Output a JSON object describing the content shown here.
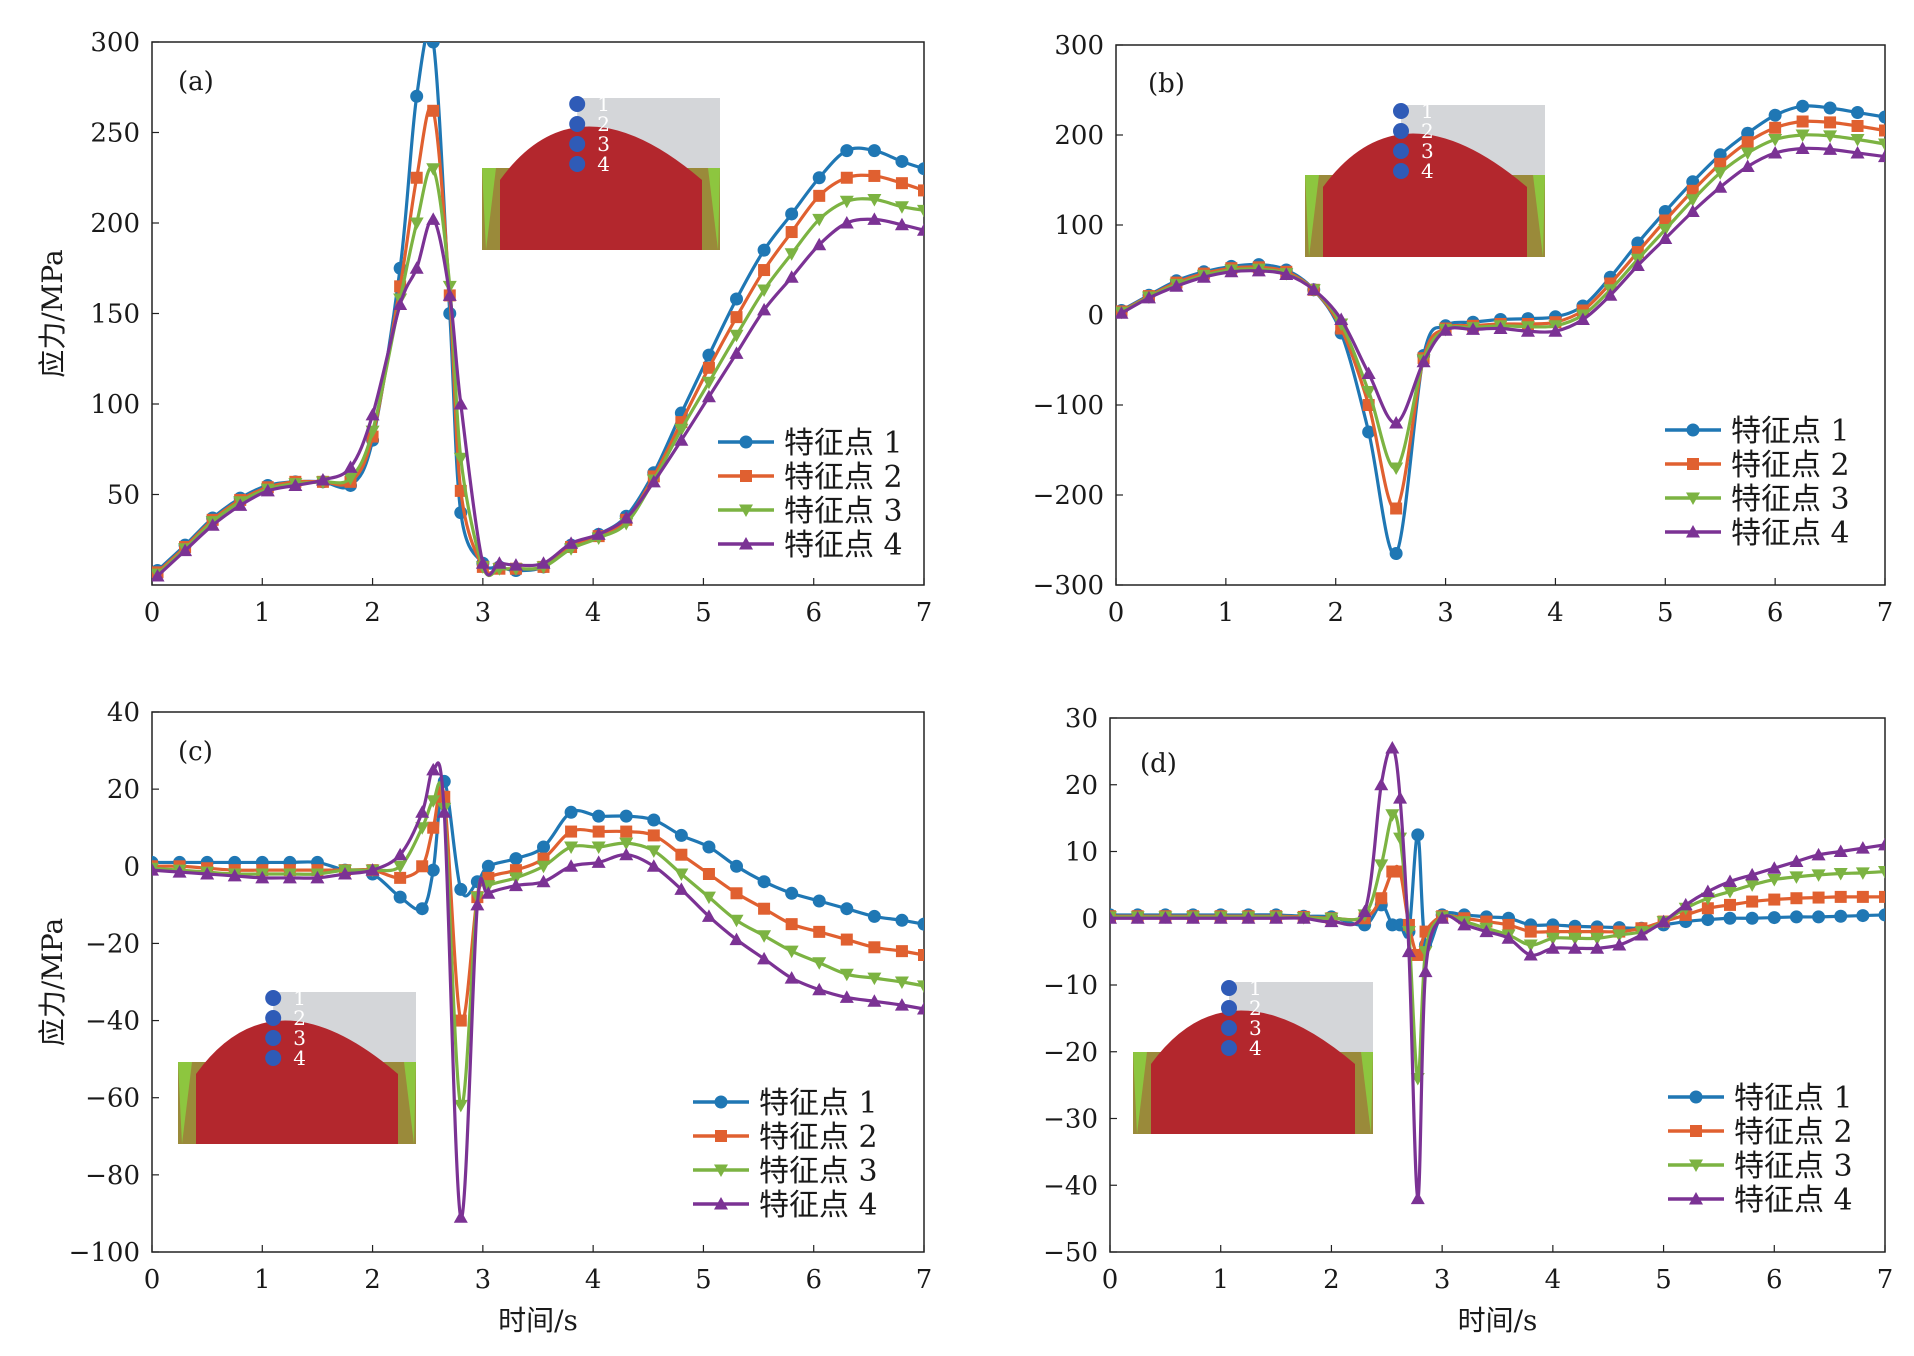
{
  "colors": {
    "series": [
      "#1f77b4",
      "#e06030",
      "#7cb342",
      "#7b3294"
    ],
    "inset_red": "#b3272d",
    "inset_gray": "#d4d6d9",
    "inset_olive": "#9a8a3a",
    "inset_green": "#8dc63f",
    "inset_dot": "#2f5bb7"
  },
  "markers": [
    "circle",
    "square",
    "triangle-down",
    "triangle-up"
  ],
  "shared": {
    "ylabel": "应力/MPa",
    "xlabel": "时间/s",
    "inset_points": [
      "1",
      "2",
      "3",
      "4"
    ]
  },
  "chart_data": [
    {
      "type": "line",
      "panel": "(a)",
      "xlim": [
        0,
        7
      ],
      "ylim": [
        0,
        300
      ],
      "xticks": [
        0,
        1,
        2,
        3,
        4,
        5,
        6,
        7
      ],
      "yticks": [
        50,
        100,
        150,
        200,
        250,
        300
      ],
      "ylabel": "应力/MPa",
      "xlabel": "",
      "legend_position": "right-middle",
      "x": [
        0.05,
        0.3,
        0.55,
        0.8,
        1.05,
        1.3,
        1.55,
        1.8,
        2.0,
        2.25,
        2.4,
        2.55,
        2.7,
        2.8,
        3.0,
        3.15,
        3.3,
        3.55,
        3.8,
        4.05,
        4.3,
        4.55,
        4.8,
        5.05,
        5.3,
        5.55,
        5.8,
        6.05,
        6.3,
        6.55,
        6.8,
        7.0
      ],
      "series": [
        {
          "name": "特征点 1",
          "values": [
            8,
            22,
            37,
            48,
            55,
            57,
            57,
            55,
            80,
            175,
            270,
            300,
            150,
            40,
            12,
            10,
            8,
            10,
            22,
            28,
            38,
            62,
            95,
            127,
            158,
            185,
            205,
            225,
            240,
            240,
            234,
            230
          ]
        },
        {
          "name": "特征点 2",
          "values": [
            7,
            21,
            36,
            47,
            54,
            57,
            57,
            57,
            82,
            165,
            225,
            262,
            160,
            52,
            10,
            9,
            9,
            10,
            21,
            27,
            36,
            60,
            90,
            120,
            148,
            174,
            195,
            215,
            225,
            226,
            222,
            218
          ]
        },
        {
          "name": "特征点 3",
          "values": [
            6,
            20,
            35,
            46,
            53,
            56,
            57,
            59,
            85,
            158,
            200,
            230,
            165,
            70,
            10,
            9,
            9,
            10,
            20,
            26,
            34,
            58,
            86,
            112,
            138,
            163,
            183,
            202,
            212,
            213,
            209,
            207
          ]
        },
        {
          "name": "特征点 4",
          "values": [
            5,
            19,
            33,
            44,
            52,
            55,
            58,
            65,
            94,
            155,
            175,
            202,
            160,
            100,
            12,
            12,
            11,
            12,
            23,
            28,
            37,
            57,
            80,
            104,
            128,
            152,
            170,
            188,
            200,
            202,
            199,
            196
          ]
        }
      ]
    },
    {
      "type": "line",
      "panel": "(b)",
      "xlim": [
        0,
        7
      ],
      "ylim": [
        -300,
        300
      ],
      "xticks": [
        0,
        1,
        2,
        3,
        4,
        5,
        6,
        7
      ],
      "yticks": [
        -300,
        -200,
        -100,
        0,
        100,
        200,
        300
      ],
      "ylabel": "",
      "xlabel": "",
      "legend_position": "right-middle",
      "x": [
        0.05,
        0.3,
        0.55,
        0.8,
        1.05,
        1.3,
        1.55,
        1.8,
        2.05,
        2.3,
        2.55,
        2.8,
        3.0,
        3.25,
        3.5,
        3.75,
        4.0,
        4.25,
        4.5,
        4.75,
        5.0,
        5.25,
        5.5,
        5.75,
        6.0,
        6.25,
        6.5,
        6.75,
        7.0
      ],
      "series": [
        {
          "name": "特征点 1",
          "values": [
            5,
            22,
            38,
            48,
            54,
            56,
            50,
            28,
            -20,
            -130,
            -265,
            -45,
            -12,
            -8,
            -5,
            -4,
            -2,
            10,
            42,
            80,
            115,
            148,
            178,
            202,
            222,
            232,
            230,
            225,
            220
          ]
        },
        {
          "name": "特征点 2",
          "values": [
            4,
            21,
            36,
            46,
            52,
            53,
            48,
            28,
            -15,
            -100,
            -215,
            -48,
            -15,
            -12,
            -10,
            -10,
            -8,
            5,
            35,
            70,
            105,
            138,
            168,
            192,
            208,
            215,
            214,
            210,
            205
          ]
        },
        {
          "name": "特征点 3",
          "values": [
            3,
            20,
            34,
            44,
            50,
            51,
            46,
            28,
            -10,
            -85,
            -170,
            -50,
            -16,
            -14,
            -12,
            -13,
            -12,
            0,
            28,
            62,
            95,
            128,
            158,
            180,
            195,
            200,
            199,
            195,
            190
          ]
        },
        {
          "name": "特征点 4",
          "values": [
            2,
            19,
            32,
            42,
            48,
            49,
            45,
            28,
            -5,
            -65,
            -120,
            -52,
            -17,
            -16,
            -15,
            -18,
            -18,
            -5,
            22,
            55,
            85,
            115,
            142,
            165,
            180,
            185,
            184,
            180,
            176
          ]
        }
      ]
    },
    {
      "type": "line",
      "panel": "(c)",
      "xlim": [
        0,
        7
      ],
      "ylim": [
        -100,
        40
      ],
      "xticks": [
        0,
        1,
        2,
        3,
        4,
        5,
        6,
        7
      ],
      "yticks": [
        -100,
        -80,
        -60,
        -40,
        -20,
        0,
        20,
        40
      ],
      "ylabel": "应力/MPa",
      "xlabel": "时间/s",
      "legend_position": "bottom-right",
      "x": [
        0,
        0.25,
        0.5,
        0.75,
        1.0,
        1.25,
        1.5,
        1.75,
        2.0,
        2.25,
        2.45,
        2.55,
        2.65,
        2.8,
        2.95,
        3.05,
        3.3,
        3.55,
        3.8,
        4.05,
        4.3,
        4.55,
        4.8,
        5.05,
        5.3,
        5.55,
        5.8,
        6.05,
        6.3,
        6.55,
        6.8,
        7.0
      ],
      "series": [
        {
          "name": "特征点 1",
          "values": [
            1,
            1,
            1,
            1,
            1,
            1,
            1,
            -1,
            -2,
            -8,
            -11,
            -1,
            22,
            -6,
            -4,
            0,
            2,
            5,
            14,
            13,
            13,
            12,
            8,
            5,
            0,
            -4,
            -7,
            -9,
            -11,
            -13,
            -14,
            -15
          ]
        },
        {
          "name": "特征点 2",
          "values": [
            0,
            0,
            -0.5,
            -1,
            -1,
            -1,
            -1,
            -1,
            -1,
            -3,
            0,
            10,
            18,
            -40,
            -8,
            -3,
            -1,
            2,
            9,
            9,
            9,
            8,
            3,
            -2,
            -7,
            -11,
            -15,
            -17,
            -19,
            -21,
            -22,
            -23
          ]
        },
        {
          "name": "特征点 3",
          "values": [
            -0.5,
            -1,
            -1.5,
            -2,
            -2,
            -2,
            -2,
            -1,
            -1,
            0,
            10,
            17,
            15,
            -62,
            -8,
            -5,
            -3,
            0,
            5,
            5,
            6,
            4,
            -2,
            -8,
            -14,
            -18,
            -22,
            -25,
            -28,
            -29,
            -30,
            -31
          ]
        },
        {
          "name": "特征点 4",
          "values": [
            -1,
            -1.5,
            -2,
            -2.5,
            -3,
            -3,
            -3,
            -2,
            -1,
            3,
            14,
            25,
            14,
            -91,
            -10,
            -7,
            -5,
            -4,
            0,
            1,
            3,
            0,
            -6,
            -13,
            -19,
            -24,
            -29,
            -32,
            -34,
            -35,
            -36,
            -37
          ]
        }
      ]
    },
    {
      "type": "line",
      "panel": "(d)",
      "xlim": [
        0,
        7
      ],
      "ylim": [
        -50,
        30
      ],
      "xticks": [
        0,
        1,
        2,
        3,
        4,
        5,
        6,
        7
      ],
      "yticks": [
        -50,
        -40,
        -30,
        -20,
        -10,
        0,
        10,
        20,
        30
      ],
      "ylabel": "",
      "xlabel": "时间/s",
      "legend_position": "bottom-right",
      "x": [
        0,
        0.25,
        0.5,
        0.75,
        1.0,
        1.25,
        1.5,
        1.75,
        2.0,
        2.3,
        2.45,
        2.55,
        2.62,
        2.7,
        2.78,
        2.85,
        3.0,
        3.2,
        3.4,
        3.6,
        3.8,
        4.0,
        4.2,
        4.4,
        4.6,
        4.8,
        5.0,
        5.2,
        5.4,
        5.6,
        5.8,
        6.0,
        6.2,
        6.4,
        6.6,
        6.8,
        7.0
      ],
      "series": [
        {
          "name": "特征点 1",
          "values": [
            0.5,
            0.5,
            0.5,
            0.5,
            0.5,
            0.5,
            0.5,
            0.3,
            0.2,
            -1,
            2,
            -1,
            -1,
            -2,
            12.5,
            -4,
            0.5,
            0.5,
            0.2,
            0,
            -1,
            -1,
            -1.2,
            -1.3,
            -1.4,
            -1.5,
            -1,
            -0.5,
            -0.2,
            0,
            0,
            0.1,
            0.2,
            0.2,
            0.3,
            0.4,
            0.5
          ]
        },
        {
          "name": "特征点 2",
          "values": [
            0.3,
            0.3,
            0.3,
            0.3,
            0.3,
            0.3,
            0.3,
            0.2,
            0,
            0,
            3,
            7,
            7,
            -1,
            -5.5,
            -2,
            0.3,
            0,
            -0.5,
            -1,
            -2,
            -2,
            -2,
            -2,
            -2,
            -1.5,
            -0.5,
            0.5,
            1.5,
            2,
            2.5,
            2.8,
            3,
            3.1,
            3.2,
            3.2,
            3.2
          ]
        },
        {
          "name": "特征点 3",
          "values": [
            0.2,
            0.2,
            0.2,
            0.2,
            0.2,
            0.2,
            0.2,
            0.1,
            0,
            0.5,
            8,
            15.5,
            12,
            -2,
            -24,
            -5,
            0.2,
            -0.5,
            -1.5,
            -2.5,
            -4,
            -3,
            -3,
            -3,
            -2.5,
            -2,
            -0.5,
            1.5,
            3,
            4,
            5,
            5.8,
            6.2,
            6.5,
            6.7,
            6.8,
            7
          ]
        },
        {
          "name": "特征点 4",
          "values": [
            0,
            0,
            0,
            0,
            0,
            0,
            0,
            0,
            -0.5,
            1,
            20,
            25.5,
            18,
            -5,
            -42,
            -8,
            0,
            -1,
            -2,
            -3,
            -5.5,
            -4.5,
            -4.5,
            -4.5,
            -4,
            -2.5,
            -0.5,
            2,
            4,
            5.5,
            6.5,
            7.5,
            8.5,
            9.5,
            10,
            10.5,
            11
          ]
        }
      ]
    }
  ]
}
